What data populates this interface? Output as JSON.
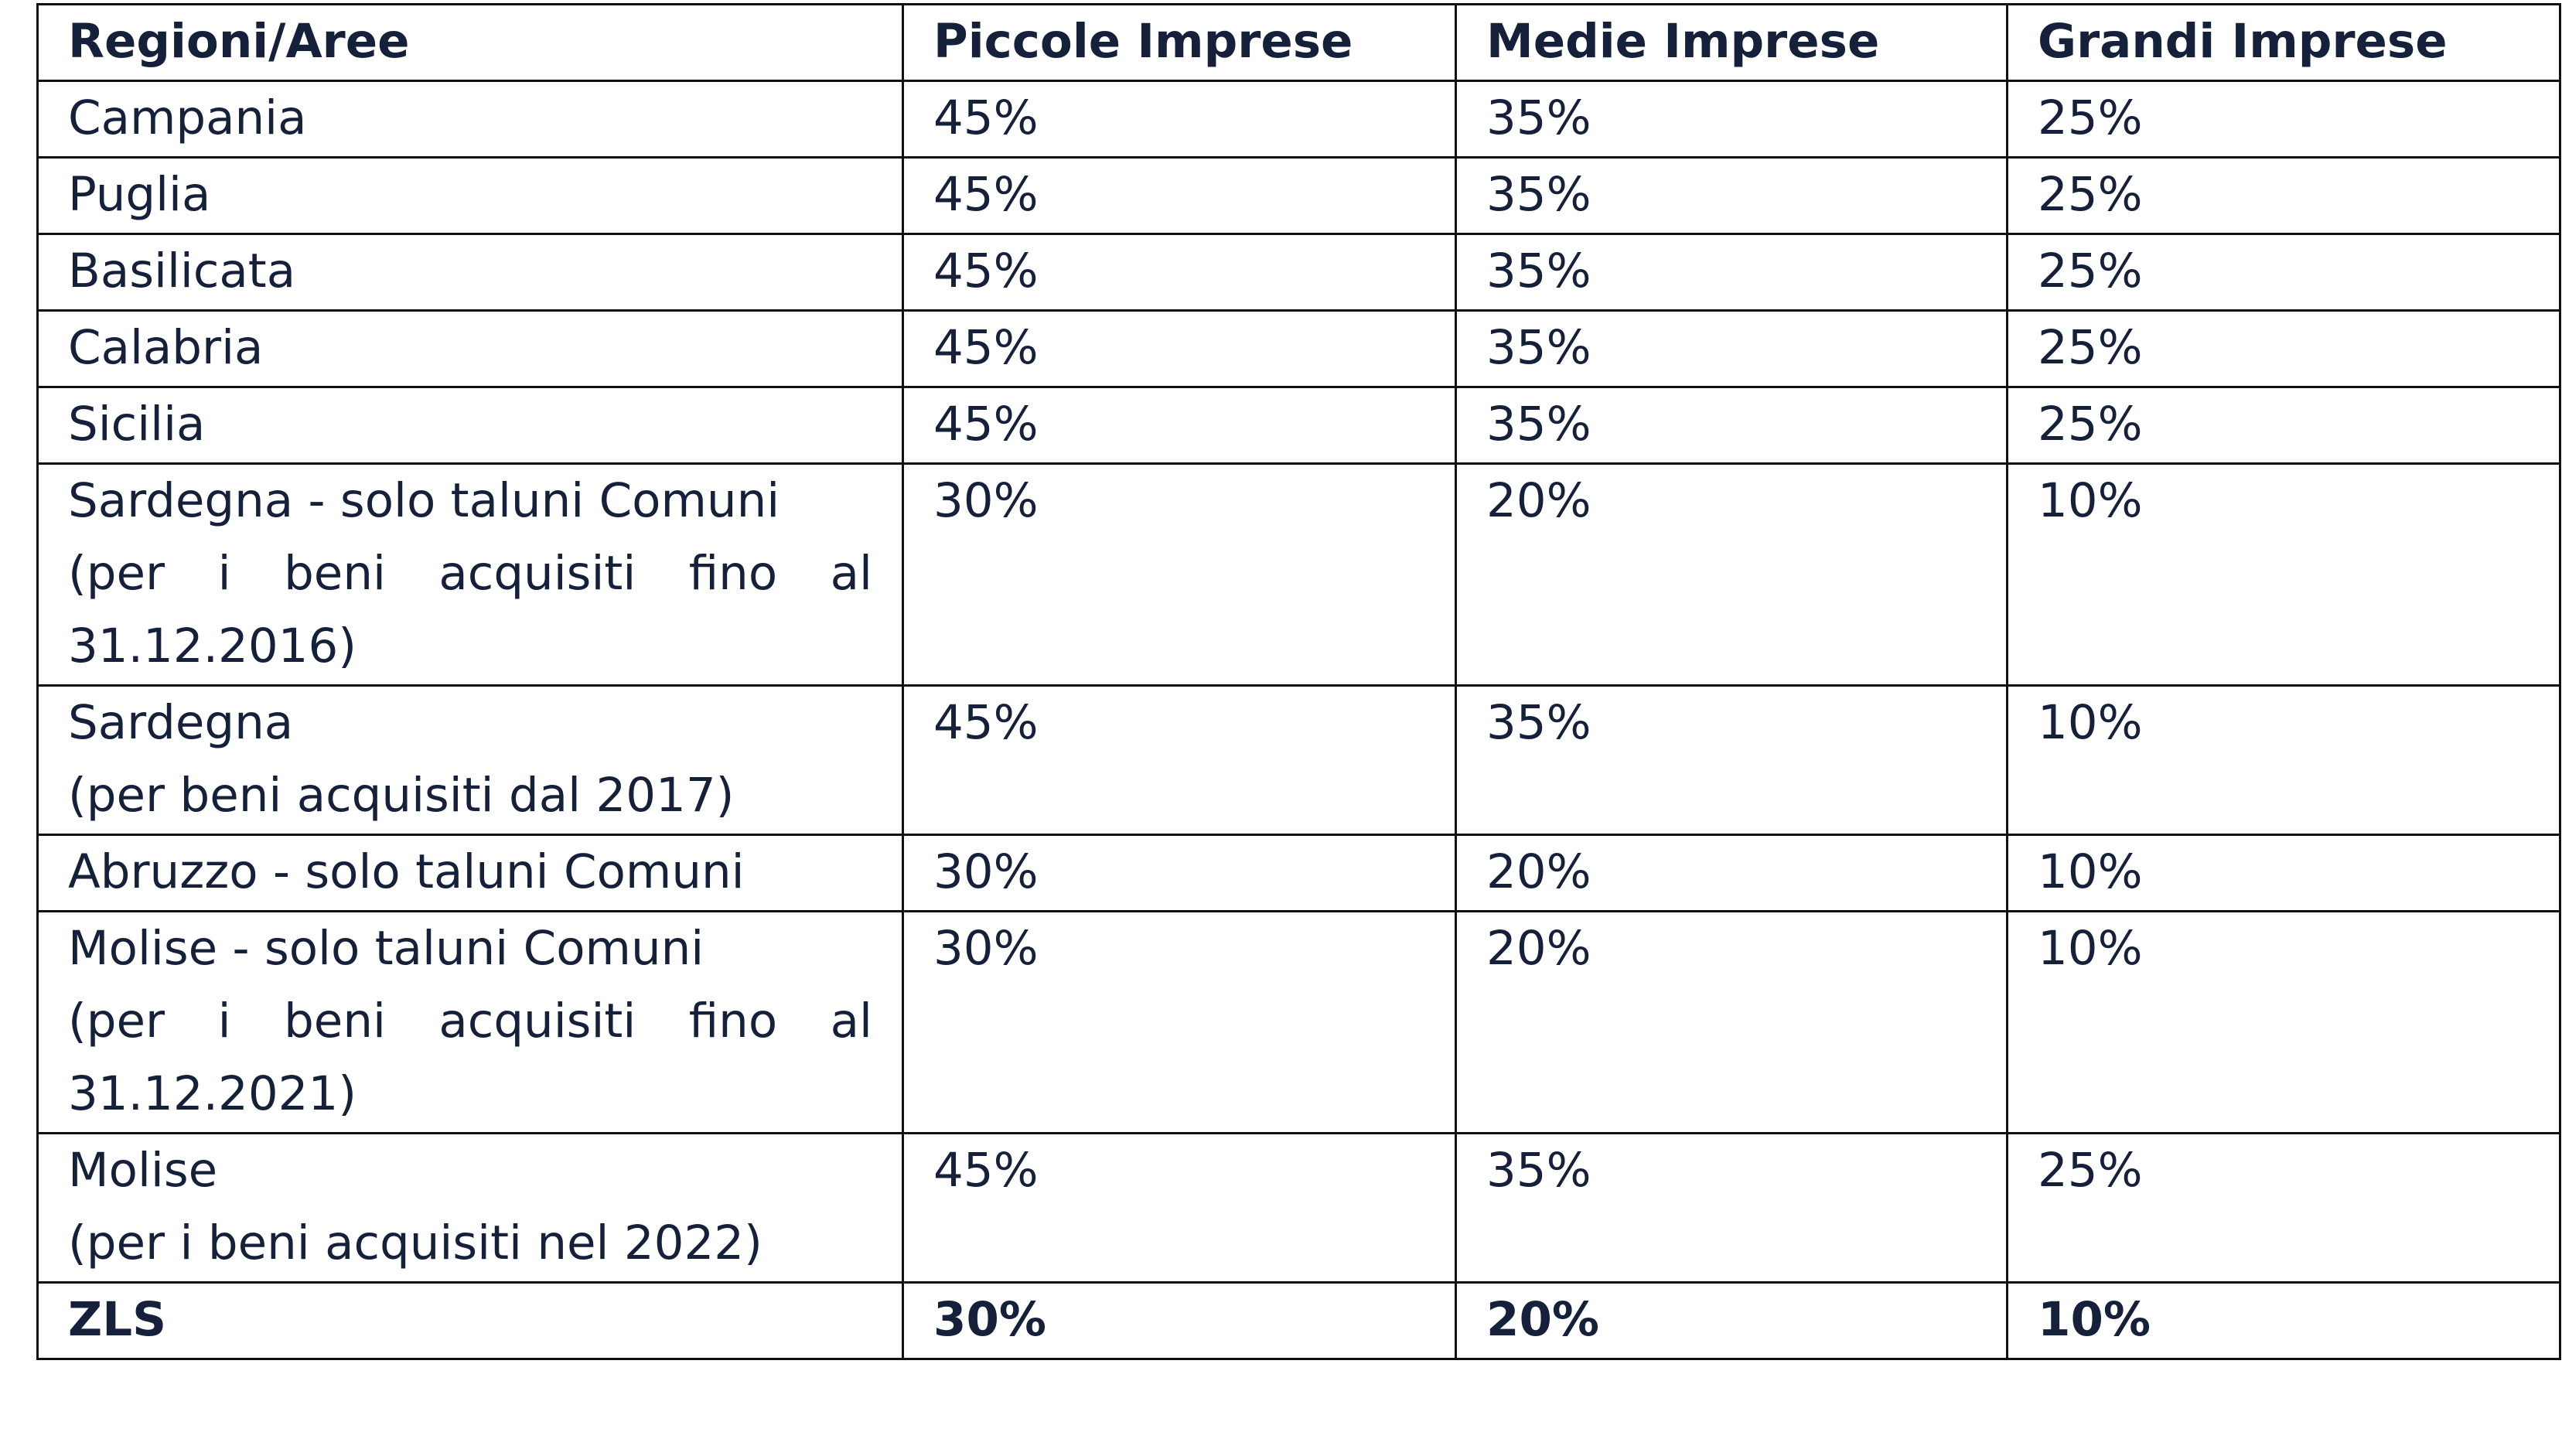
{
  "table": {
    "header": [
      "Regioni/Aree",
      "Piccole Imprese",
      "Medie Imprese",
      "Grandi Imprese"
    ],
    "rows": [
      [
        [
          "Campania"
        ],
        "45%",
        "35%",
        "25%"
      ],
      [
        [
          "Puglia"
        ],
        "45%",
        "35%",
        "25%"
      ],
      [
        [
          "Basilicata"
        ],
        "45%",
        "35%",
        "25%"
      ],
      [
        [
          "Calabria"
        ],
        "45%",
        "35%",
        "25%"
      ],
      [
        [
          "Sicilia"
        ],
        "45%",
        "35%",
        "25%"
      ],
      [
        [
          "Sardegna - solo taluni Comuni",
          "(per i beni acquisiti fino al",
          "31.12.2016)"
        ],
        "30%",
        "20%",
        "10%"
      ],
      [
        [
          "Sardegna",
          "(per beni acquisiti dal 2017)"
        ],
        "45%",
        "35%",
        "10%"
      ],
      [
        [
          "Abruzzo - solo taluni Comuni"
        ],
        "30%",
        "20%",
        "10%"
      ],
      [
        [
          "Molise - solo taluni Comuni",
          "(per i beni acquisiti fino al",
          "31.12.2021)"
        ],
        "30%",
        "20%",
        "10%"
      ],
      [
        [
          "Molise",
          "(per i beni acquisiti nel 2022)"
        ],
        "45%",
        "35%",
        "25%"
      ],
      [
        [
          "ZLS"
        ],
        "30%",
        "20%",
        "10%"
      ]
    ]
  }
}
